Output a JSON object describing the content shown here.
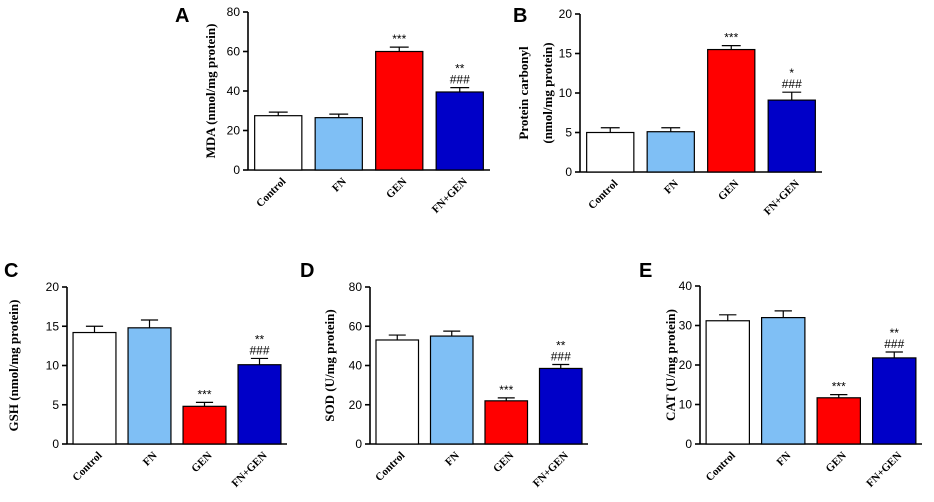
{
  "chart_data": [
    {
      "panel": "A",
      "type": "bar",
      "ylabel": "MDA (nmol/mg protein)",
      "categories": [
        "Control",
        "FN",
        "GEN",
        "FN+GEN"
      ],
      "values": [
        27.5,
        26.5,
        60,
        39.5
      ],
      "errors": [
        1.8,
        1.8,
        2.2,
        2.2
      ],
      "ylim": [
        0,
        80
      ],
      "yticks": [
        0,
        20,
        40,
        60,
        80
      ],
      "significance": [
        [],
        [],
        [
          "***"
        ],
        [
          "**",
          "###"
        ]
      ]
    },
    {
      "panel": "B",
      "type": "bar",
      "ylabel_lines": [
        "Protein carbonyl",
        "(nmol/mg protein)"
      ],
      "categories": [
        "Control",
        "FN",
        "GEN",
        "FN+GEN"
      ],
      "values": [
        5.0,
        5.1,
        15.5,
        9.1
      ],
      "errors": [
        0.6,
        0.5,
        0.5,
        1.0
      ],
      "ylim": [
        0,
        20
      ],
      "yticks": [
        0,
        5,
        10,
        15,
        20
      ],
      "significance": [
        [],
        [],
        [
          "***"
        ],
        [
          "*",
          "###"
        ]
      ]
    },
    {
      "panel": "C",
      "type": "bar",
      "ylabel": "GSH (nmol/mg protein)",
      "categories": [
        "Control",
        "FN",
        "GEN",
        "FN+GEN"
      ],
      "values": [
        14.2,
        14.8,
        4.8,
        10.1
      ],
      "errors": [
        0.8,
        1.0,
        0.5,
        0.8
      ],
      "ylim": [
        0,
        20
      ],
      "yticks": [
        0,
        5,
        10,
        15,
        20
      ],
      "significance": [
        [],
        [],
        [
          "***"
        ],
        [
          "**",
          "###"
        ]
      ]
    },
    {
      "panel": "D",
      "type": "bar",
      "ylabel": "SOD (U/mg protein)",
      "categories": [
        "Control",
        "FN",
        "GEN",
        "FN+GEN"
      ],
      "values": [
        53,
        55,
        22,
        38.5
      ],
      "errors": [
        2.5,
        2.5,
        1.5,
        2.0
      ],
      "ylim": [
        0,
        80
      ],
      "yticks": [
        0,
        20,
        40,
        60,
        80
      ],
      "significance": [
        [],
        [],
        [
          "***"
        ],
        [
          "**",
          "###"
        ]
      ]
    },
    {
      "panel": "E",
      "type": "bar",
      "ylabel": "CAT (U/mg protein)",
      "categories": [
        "Control",
        "FN",
        "GEN",
        "FN+GEN"
      ],
      "values": [
        31.2,
        32,
        11.7,
        21.8
      ],
      "errors": [
        1.5,
        1.7,
        0.8,
        1.5
      ],
      "ylim": [
        0,
        40
      ],
      "yticks": [
        0,
        10,
        20,
        30,
        40
      ],
      "significance": [
        [],
        [],
        [
          "***"
        ],
        [
          "**",
          "###"
        ]
      ]
    }
  ],
  "colors": {
    "Control": "#ffffff",
    "FN": "#7fbff5",
    "GEN": "#ff0000",
    "FN+GEN": "#0000c8"
  }
}
